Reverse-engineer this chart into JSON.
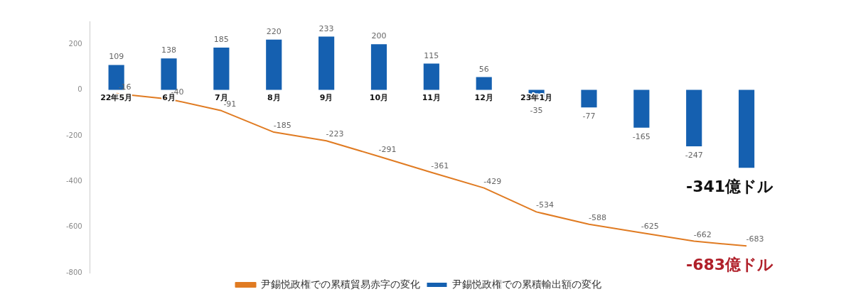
{
  "chart_data": {
    "type": "bar",
    "categories": [
      "22年5月",
      "6月",
      "7月",
      "8月",
      "9月",
      "10月",
      "11月",
      "12月",
      "23年1月",
      null,
      null,
      null,
      null
    ],
    "series": [
      {
        "name": "尹錫悦政権での累積輸出額の変化",
        "color": "#1560b0",
        "values": [
          109,
          138,
          185,
          220,
          233,
          200,
          115,
          56,
          -35,
          -77,
          -165,
          -247,
          -341
        ],
        "value_labels": [
          "109",
          "138",
          "185",
          "220",
          "233",
          "200",
          "115",
          "56",
          "-35",
          "-77",
          "-165",
          "-247",
          null
        ]
      },
      {
        "name": "尹錫悦政権での累積貿易赤字の変化",
        "type": "line",
        "color": "#e07b22",
        "values": [
          -16,
          -40,
          -91,
          -185,
          -223,
          -291,
          -361,
          -429,
          -534,
          -588,
          -625,
          -662,
          -683
        ],
        "value_labels": [
          "-16",
          "-40",
          "-91",
          "-185",
          "-223",
          "-291",
          "-361",
          "-429",
          "-534",
          "-588",
          "-625",
          "-662",
          "-683"
        ]
      }
    ],
    "ylim": [
      -800,
      300
    ],
    "yticks": [
      200,
      0,
      -200,
      -400,
      -600,
      -800
    ],
    "grid": false,
    "legend": "bottom",
    "marker": "none",
    "annotations": [
      "-341億ドル",
      "-683億ドル"
    ]
  }
}
